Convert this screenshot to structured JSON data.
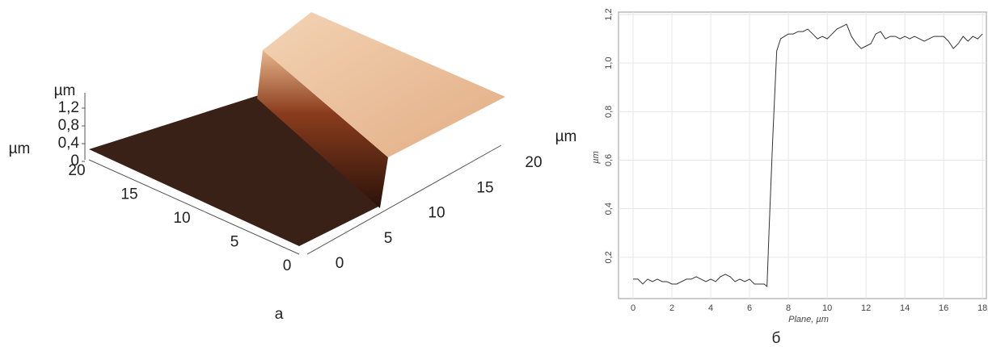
{
  "chart_data": [
    {
      "type": "surface3d",
      "caption": "а",
      "z_unit": "µm",
      "z_ticks": [
        {
          "value": 1.2,
          "label": "1,2"
        },
        {
          "value": 0.8,
          "label": "0,8"
        },
        {
          "value": 0.4,
          "label": "0,4"
        },
        0
      ],
      "x_unit": "µm",
      "x_ticks": [
        20,
        15,
        10,
        5,
        0
      ],
      "y_unit": "µm",
      "y_ticks": [
        0,
        5,
        10,
        15,
        20
      ]
    },
    {
      "type": "line",
      "caption": "б",
      "xlabel": "Plane, µm",
      "ylabel": "µm",
      "grid": true,
      "color": "#333333",
      "xlim": [
        -0.75,
        18.2
      ],
      "ylim": [
        0.03,
        1.21
      ],
      "xticks": [
        0,
        2,
        4,
        6,
        8,
        10,
        12,
        14,
        16,
        18
      ],
      "yticks": [
        {
          "value": 0.2,
          "label": "0,2"
        },
        {
          "value": 0.4,
          "label": "0,4"
        },
        {
          "value": 0.6,
          "label": "0,6"
        },
        {
          "value": 0.8,
          "label": "0,8"
        },
        {
          "value": 1.0,
          "label": "1,0"
        },
        {
          "value": 1.2,
          "label": "1,2"
        }
      ],
      "x": [
        0,
        0.25,
        0.5,
        0.75,
        1,
        1.25,
        1.5,
        1.75,
        2,
        2.25,
        2.5,
        2.75,
        3,
        3.25,
        3.5,
        3.75,
        4,
        4.25,
        4.5,
        4.75,
        5,
        5.25,
        5.5,
        5.75,
        6,
        6.25,
        6.5,
        6.75,
        6.9,
        7.0,
        7.2,
        7.4,
        7.6,
        7.8,
        8,
        8.25,
        8.5,
        8.75,
        9,
        9.25,
        9.5,
        9.75,
        10,
        10.25,
        10.5,
        10.75,
        11,
        11.25,
        11.5,
        11.75,
        12,
        12.25,
        12.5,
        12.75,
        13,
        13.25,
        13.5,
        13.75,
        14,
        14.25,
        14.5,
        14.75,
        15,
        15.25,
        15.5,
        15.75,
        16,
        16.25,
        16.5,
        16.75,
        17,
        17.25,
        17.5,
        17.75,
        18
      ],
      "values": [
        0.11,
        0.11,
        0.09,
        0.11,
        0.1,
        0.11,
        0.1,
        0.1,
        0.09,
        0.09,
        0.1,
        0.11,
        0.11,
        0.12,
        0.11,
        0.1,
        0.11,
        0.1,
        0.12,
        0.13,
        0.12,
        0.1,
        0.11,
        0.1,
        0.11,
        0.09,
        0.09,
        0.09,
        0.08,
        0.3,
        0.7,
        1.05,
        1.1,
        1.11,
        1.12,
        1.12,
        1.13,
        1.13,
        1.14,
        1.12,
        1.1,
        1.11,
        1.1,
        1.12,
        1.14,
        1.15,
        1.16,
        1.11,
        1.08,
        1.06,
        1.07,
        1.08,
        1.12,
        1.13,
        1.1,
        1.11,
        1.11,
        1.1,
        1.11,
        1.1,
        1.11,
        1.1,
        1.09,
        1.1,
        1.11,
        1.11,
        1.11,
        1.09,
        1.06,
        1.08,
        1.11,
        1.09,
        1.11,
        1.1,
        1.12
      ]
    }
  ]
}
